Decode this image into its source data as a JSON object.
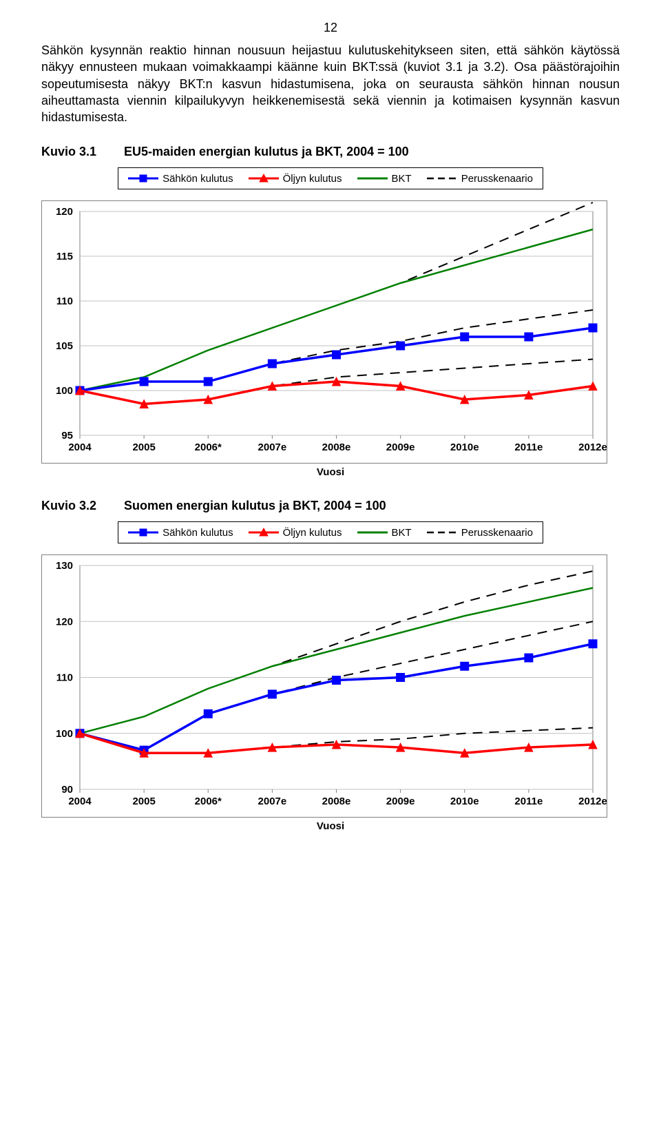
{
  "page_number": "12",
  "paragraph": "Sähkön kysynnän reaktio hinnan nousuun heijastuu kulutuskehitykseen siten, että sähkön käytössä näkyy ennusteen mukaan voimakkaampi käänne kuin BKT:ssä (kuviot 3.1 ja 3.2). Osa päästörajoihin sopeutumisesta näkyy BKT:n kasvun hidastumisena, joka on seurausta sähkön hinnan nousun aiheuttamasta viennin kilpailukyvyn heikkenemisestä sekä viennin ja kotimaisen kysynnän kasvun hidastumisesta.",
  "fig1": {
    "label": "Kuvio 3.1",
    "title": "EU5-maiden energian kulutus ja BKT, 2004 = 100",
    "legend": {
      "sahkon": "Sähkön kulutus",
      "oljyn": "Öljyn kulutus",
      "bkt": "BKT",
      "perus": "Perusskenaario"
    },
    "x_title": "Vuosi",
    "x_categories": [
      "2004",
      "2005",
      "2006*",
      "2007e",
      "2008e",
      "2009e",
      "2010e",
      "2011e",
      "2012e"
    ],
    "y_min": 95,
    "y_max": 120,
    "y_step": 5,
    "series": {
      "sahkon": [
        100,
        101,
        101,
        103,
        104,
        105,
        106,
        106,
        107
      ],
      "oljyn": [
        100,
        98.5,
        99,
        100.5,
        101,
        100.5,
        99,
        99.5,
        100.5
      ],
      "bkt": [
        100,
        101.5,
        104.5,
        107,
        109.5,
        112,
        114,
        116,
        118
      ],
      "perus_hi": [
        100,
        101.5,
        104.5,
        107,
        109.5,
        112,
        115,
        118,
        121
      ],
      "perus_mid": [
        100,
        101,
        101,
        103,
        104.5,
        105.5,
        107,
        108,
        109
      ],
      "perus_lo": [
        100,
        98.5,
        99,
        100.5,
        101.5,
        102,
        102.5,
        103,
        103.5
      ]
    },
    "colors": {
      "sahkon": "#0000ff",
      "oljyn": "#ff0000",
      "bkt": "#008000",
      "perus": "#000000",
      "grid": "#c0c0c0",
      "axis": "#808080",
      "bg": "#ffffff",
      "text": "#000000"
    },
    "line_width": {
      "sahkon": 3.5,
      "oljyn": 3.5,
      "bkt": 2.5,
      "perus": 2
    },
    "marker_size": 6
  },
  "fig2": {
    "label": "Kuvio 3.2",
    "title": "Suomen energian kulutus ja BKT, 2004 = 100",
    "legend": {
      "sahkon": "Sähkön kulutus",
      "oljyn": "Öljyn kulutus",
      "bkt": "BKT",
      "perus": "Perusskenaario"
    },
    "x_title": "Vuosi",
    "x_categories": [
      "2004",
      "2005",
      "2006*",
      "2007e",
      "2008e",
      "2009e",
      "2010e",
      "2011e",
      "2012e"
    ],
    "y_min": 90,
    "y_max": 130,
    "y_step": 10,
    "series": {
      "sahkon": [
        100,
        97,
        103.5,
        107,
        109.5,
        110,
        112,
        113.5,
        116
      ],
      "oljyn": [
        100,
        96.5,
        96.5,
        97.5,
        98,
        97.5,
        96.5,
        97.5,
        98
      ],
      "bkt": [
        100,
        103,
        108,
        112,
        115,
        118,
        121,
        123.5,
        126
      ],
      "perus_hi": [
        100,
        103,
        108,
        112,
        116,
        120,
        123.5,
        126.5,
        129
      ],
      "perus_mid": [
        100,
        97,
        103.5,
        107,
        110,
        112.5,
        115,
        117.5,
        120
      ],
      "perus_lo": [
        100,
        96.5,
        96.5,
        97.5,
        98.5,
        99,
        100,
        100.5,
        101
      ]
    },
    "colors": {
      "sahkon": "#0000ff",
      "oljyn": "#ff0000",
      "bkt": "#008000",
      "perus": "#000000",
      "grid": "#c0c0c0",
      "axis": "#808080",
      "bg": "#ffffff",
      "text": "#000000"
    },
    "line_width": {
      "sahkon": 3.5,
      "oljyn": 3.5,
      "bkt": 2.5,
      "perus": 2
    },
    "marker_size": 6
  }
}
